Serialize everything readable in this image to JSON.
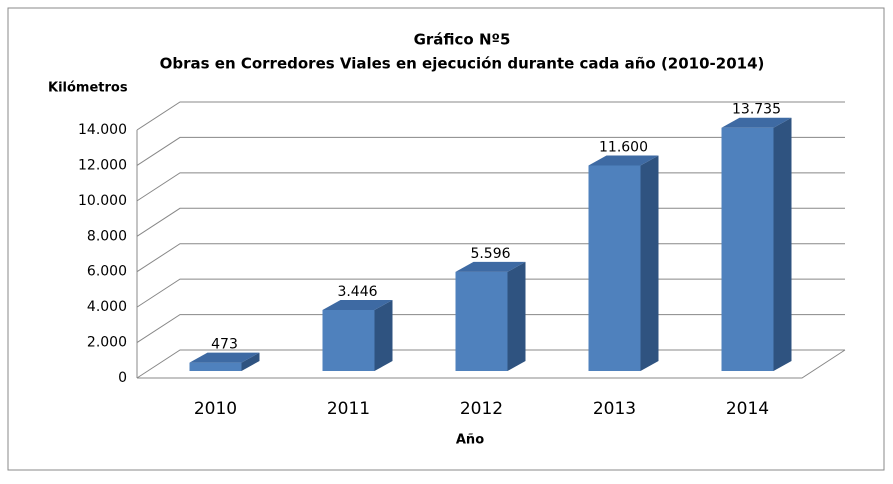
{
  "chart_data": {
    "type": "bar3d",
    "title": "Gráfico Nº5",
    "subtitle": "Obras en Corredores Viales en ejecución durante cada año (2010-2014)",
    "y_label": "Kilómetros",
    "x_label": "Año",
    "categories": [
      "2010",
      "2011",
      "2012",
      "2013",
      "2014"
    ],
    "values": [
      473,
      3446,
      5596,
      11600,
      13735
    ],
    "value_labels": [
      "473",
      "3.446",
      "5.596",
      "11.600",
      "13.735"
    ],
    "color": "#4f81bd",
    "ylim": [
      0,
      14000
    ],
    "yticks": [
      0,
      {
        "value": 2000,
        "label": "2.000"
      },
      {
        "value": 4000,
        "label": "4.000"
      },
      {
        "value": 6000,
        "label": "6.000"
      },
      {
        "value": 8000,
        "label": "8.000"
      },
      {
        "value": 10000,
        "label": "10.000"
      },
      {
        "value": 12000,
        "label": "12.000"
      },
      {
        "value": 14000,
        "label": "14.000"
      }
    ],
    "grid": true
  }
}
